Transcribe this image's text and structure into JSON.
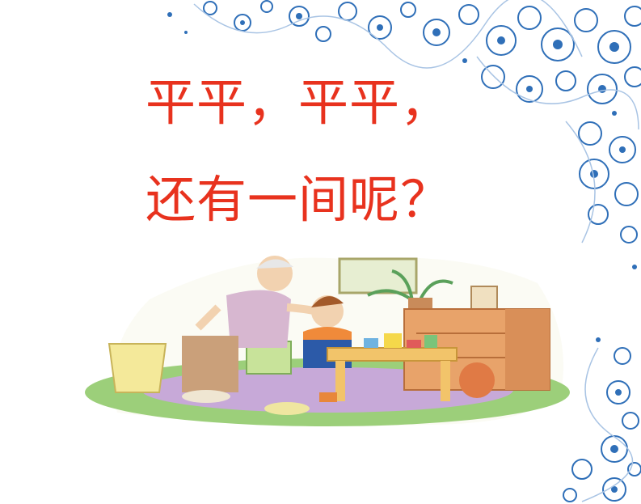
{
  "slide": {
    "line1": "平平，平平，",
    "line2": "还有一间呢？",
    "text_color": "#e8321e"
  },
  "decoration": {
    "flower_color": "#2f6fb8",
    "accent_color": "#a9c4e4"
  },
  "illustration": {
    "frame_color": "#a8c96a",
    "rug_color": "#9ccf7a",
    "rug_inner": "#c7a9d8",
    "dresser_color": "#e8a36a",
    "table_color": "#f2c46a",
    "boy_shirt": "#2c5aa8",
    "grandma_vest": "#d7b7d0"
  }
}
